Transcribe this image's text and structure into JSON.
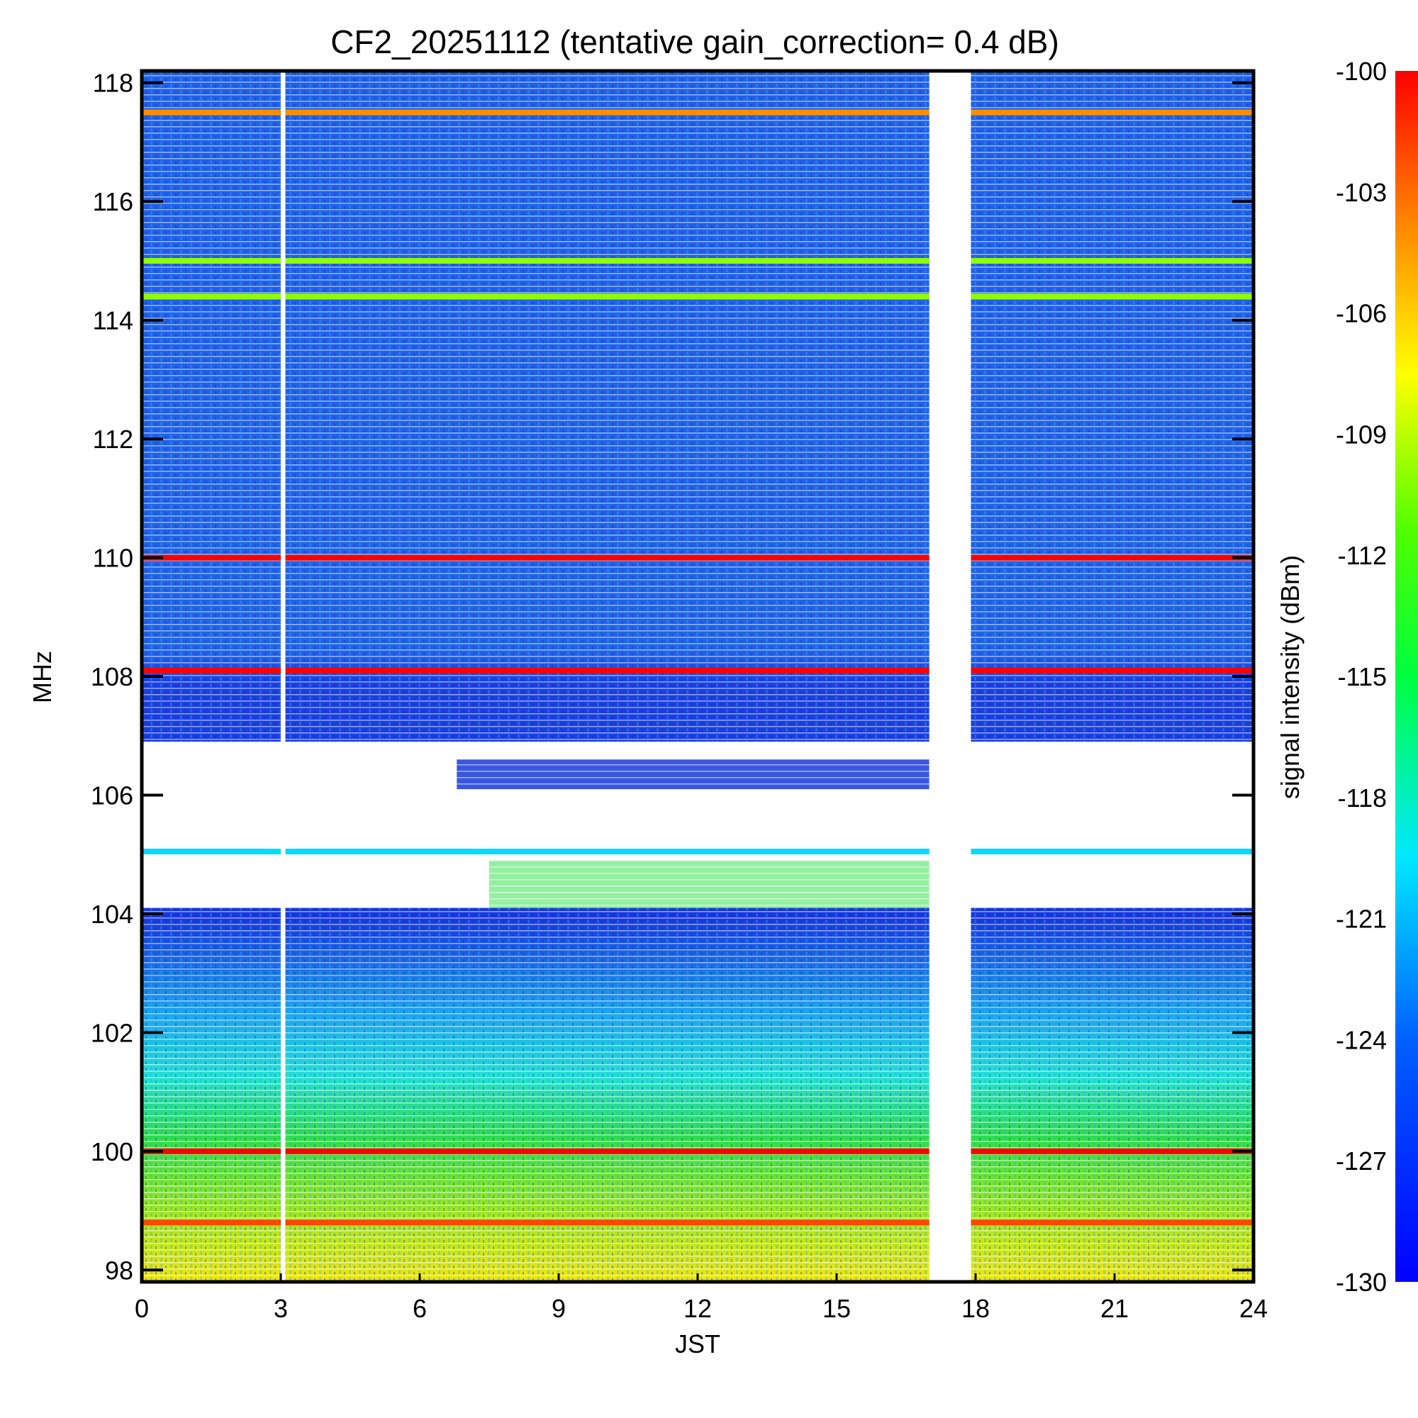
{
  "chart_data": {
    "type": "heatmap",
    "title": "CF2_20251112 (tentative gain_correction=  0.4 dB)",
    "xlabel": "JST",
    "ylabel": "MHz",
    "colorbar_label": "signal intensity (dBm)",
    "xlim": [
      0,
      24
    ],
    "ylim": [
      97.8,
      118.2
    ],
    "clim": [
      -130,
      -100
    ],
    "x_ticks": [
      0,
      3,
      6,
      9,
      12,
      15,
      18,
      21,
      24
    ],
    "y_ticks": [
      98,
      100,
      102,
      104,
      106,
      108,
      110,
      112,
      114,
      116,
      118
    ],
    "colorbar_ticks": [
      -100,
      -103,
      -106,
      -109,
      -112,
      -115,
      -118,
      -121,
      -124,
      -127,
      -130
    ],
    "data_gaps_hours": [
      [
        3.0,
        3.1
      ],
      [
        17.0,
        17.9
      ]
    ],
    "strong_bands_mhz": [
      {
        "freq": 117.5,
        "level_dbm": -104
      },
      {
        "freq": 115.0,
        "level_dbm": -110
      },
      {
        "freq": 114.4,
        "level_dbm": -110
      },
      {
        "freq": 110.0,
        "level_dbm": -100
      },
      {
        "freq": 108.1,
        "level_dbm": -100
      },
      {
        "freq": 105.05,
        "level_dbm": -120
      },
      {
        "freq": 100.0,
        "level_dbm": -100
      },
      {
        "freq": 98.8,
        "level_dbm": -102
      }
    ]
  }
}
